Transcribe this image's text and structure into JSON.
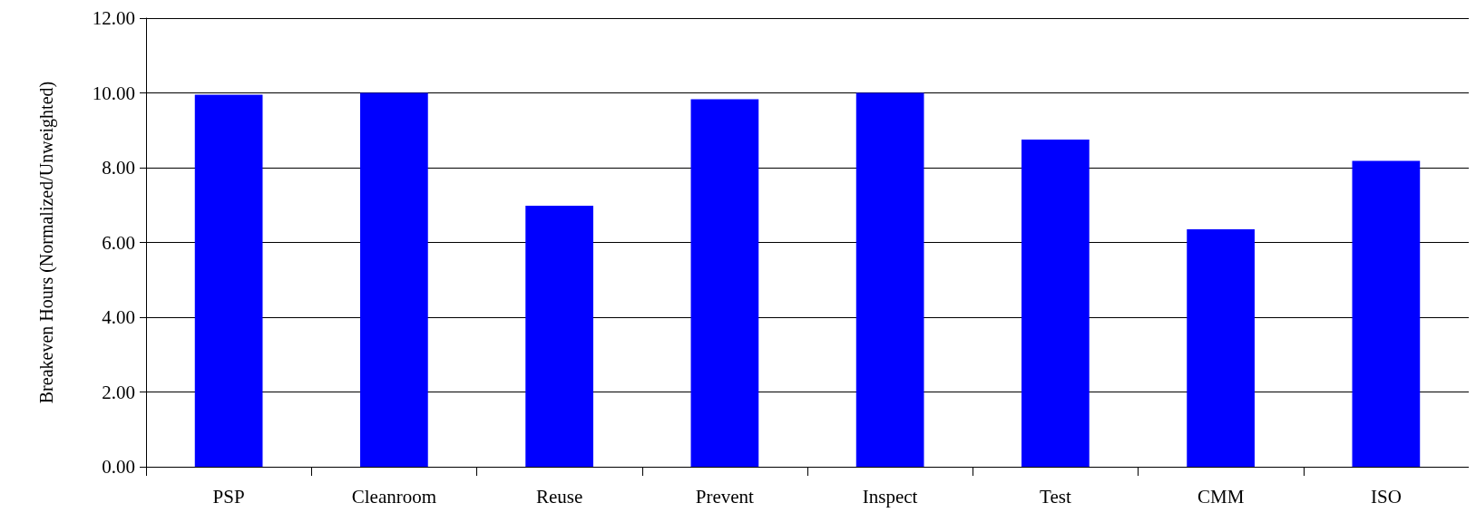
{
  "chart_data": {
    "type": "bar",
    "ylabel": "Breakeven Hours (Normalized/Unweighted)",
    "categories": [
      "PSP",
      "Cleanroom",
      "Reuse",
      "Prevent",
      "Inspect",
      "Test",
      "CMM",
      "ISO"
    ],
    "values": [
      9.95,
      10.0,
      6.98,
      9.83,
      10.0,
      8.75,
      6.35,
      8.18
    ],
    "color": "#0000ff",
    "ylim": [
      0,
      12
    ],
    "yticks": [
      {
        "value": 0,
        "label": "0.00"
      },
      {
        "value": 2,
        "label": "2.00"
      },
      {
        "value": 4,
        "label": "4.00"
      },
      {
        "value": 6,
        "label": "6.00"
      },
      {
        "value": 8,
        "label": "8.00"
      },
      {
        "value": 10,
        "label": "10.00"
      },
      {
        "value": 12,
        "label": "12.00"
      }
    ],
    "grid": "y"
  }
}
